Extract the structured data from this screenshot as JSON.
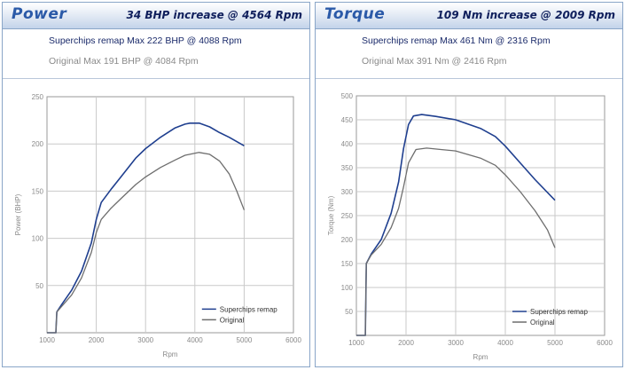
{
  "panels": [
    {
      "title": "Power",
      "subtitle": "34 BHP increase @ 4564 Rpm",
      "legend_line1": "Superchips remap Max 222 BHP @ 4088 Rpm",
      "legend_line2": "Original Max 191 BHP @ 4084 Rpm"
    },
    {
      "title": "Torque",
      "subtitle": "109 Nm increase @ 2009 Rpm",
      "legend_line1": "Superchips remap Max 461 Nm @ 2316 Rpm",
      "legend_line2": "Original Max 391 Nm @ 2416 Rpm"
    }
  ],
  "colors": {
    "remap": "#1f3f8f",
    "original": "#6e6e6e",
    "grid": "#c9c9c9",
    "header_title": "#2b5aa8",
    "header_sub": "#0f1f5c"
  },
  "chart_data": [
    {
      "type": "line",
      "xlabel": "Rpm",
      "ylabel": "Power (BHP)",
      "xlim": [
        1000,
        6000
      ],
      "ylim": [
        0,
        250
      ],
      "xticks": [
        1000,
        2000,
        3000,
        4000,
        5000,
        6000
      ],
      "yticks": [
        0,
        50,
        100,
        150,
        200,
        250
      ],
      "grid": true,
      "legend_position": "bottom-right",
      "series": [
        {
          "name": "Superchips remap",
          "color": "#1f3f8f",
          "x": [
            1000,
            1180,
            1200,
            1300,
            1500,
            1700,
            1900,
            2000,
            2100,
            2300,
            2500,
            2800,
            3000,
            3300,
            3600,
            3800,
            3900,
            4088,
            4300,
            4500,
            4700,
            5000
          ],
          "y": [
            0,
            0,
            22,
            30,
            45,
            65,
            95,
            120,
            138,
            152,
            165,
            185,
            195,
            207,
            217,
            221,
            222,
            222,
            218,
            212,
            207,
            198
          ]
        },
        {
          "name": "Original",
          "color": "#6e6e6e",
          "x": [
            1000,
            1180,
            1200,
            1300,
            1500,
            1700,
            1900,
            2000,
            2100,
            2300,
            2500,
            2800,
            3000,
            3300,
            3600,
            3800,
            4084,
            4300,
            4500,
            4700,
            4850,
            5000
          ],
          "y": [
            0,
            0,
            22,
            28,
            40,
            58,
            85,
            106,
            120,
            132,
            142,
            157,
            165,
            175,
            183,
            188,
            191,
            189,
            182,
            168,
            150,
            130
          ]
        }
      ]
    },
    {
      "type": "line",
      "xlabel": "Rpm",
      "ylabel": "Torque (Nm)",
      "xlim": [
        1000,
        6000
      ],
      "ylim": [
        0,
        500
      ],
      "xticks": [
        1000,
        2000,
        3000,
        4000,
        5000,
        6000
      ],
      "yticks": [
        0,
        50,
        100,
        150,
        200,
        250,
        300,
        350,
        400,
        450,
        500
      ],
      "grid": true,
      "legend_position": "bottom-right",
      "series": [
        {
          "name": "Superchips remap",
          "color": "#1f3f8f",
          "x": [
            1000,
            1180,
            1200,
            1300,
            1500,
            1700,
            1850,
            1950,
            2050,
            2150,
            2316,
            2600,
            3000,
            3500,
            3800,
            4000,
            4300,
            4600,
            5000
          ],
          "y": [
            0,
            0,
            150,
            170,
            200,
            255,
            320,
            390,
            440,
            458,
            461,
            457,
            450,
            432,
            415,
            395,
            360,
            325,
            282
          ]
        },
        {
          "name": "Original",
          "color": "#6e6e6e",
          "x": [
            1000,
            1180,
            1200,
            1300,
            1500,
            1700,
            1850,
            1950,
            2050,
            2200,
            2416,
            2700,
            3000,
            3500,
            3800,
            4000,
            4300,
            4600,
            4850,
            5000
          ],
          "y": [
            0,
            0,
            150,
            168,
            190,
            225,
            265,
            310,
            360,
            388,
            391,
            388,
            385,
            370,
            355,
            335,
            300,
            260,
            220,
            183
          ]
        }
      ]
    }
  ]
}
